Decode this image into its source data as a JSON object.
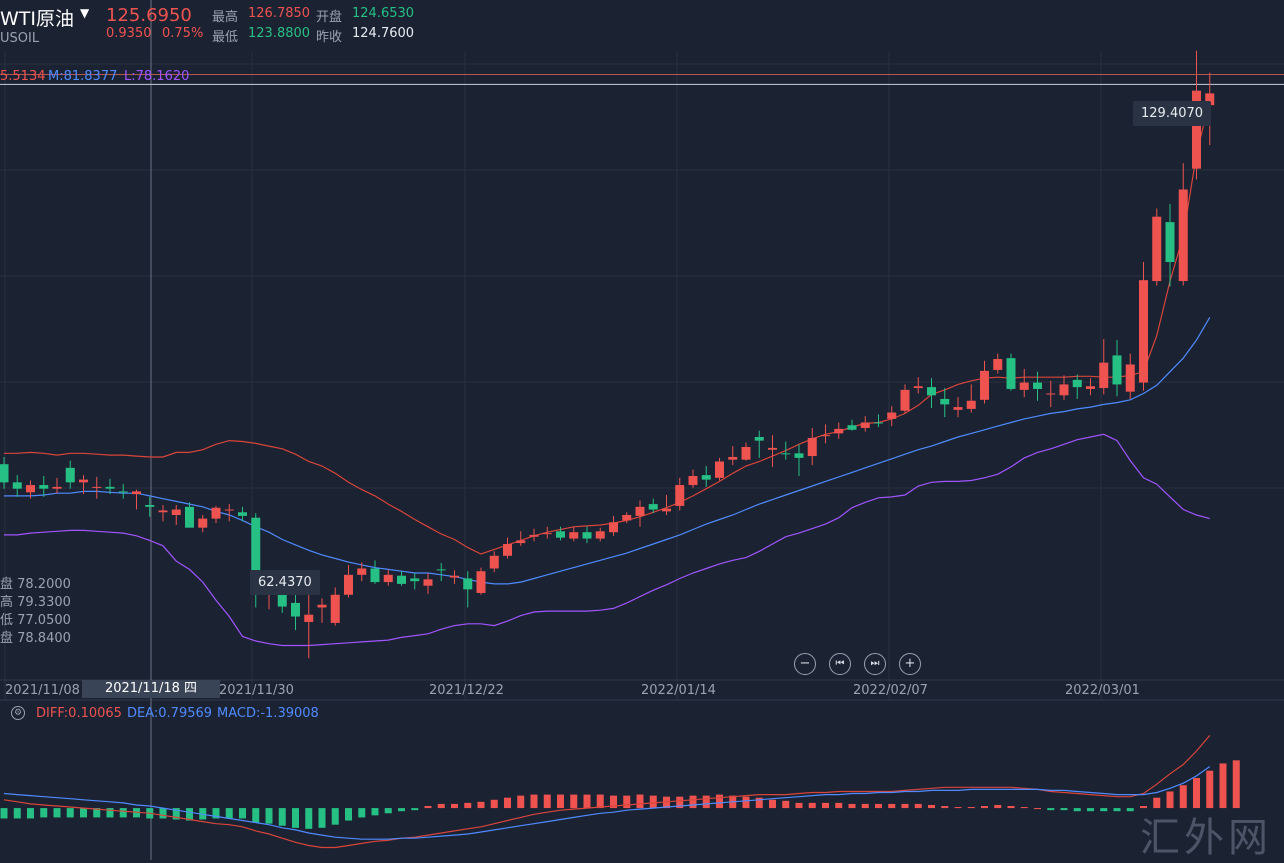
{
  "header": {
    "symbol_name": "WTI原油",
    "symbol_code": "USOIL",
    "last_price": "125.6950",
    "change": "0.9350",
    "change_pct": "0.75%",
    "stats": {
      "high_label": "最高",
      "high": "126.7850",
      "open_label": "开盘",
      "open": "124.6530",
      "low_label": "最低",
      "low": "123.8800",
      "prev_close_label": "昨收",
      "prev_close": "124.7600"
    }
  },
  "boll": {
    "upper": "5.5134",
    "mid": "M:81.8377",
    "lower": "L:78.1620"
  },
  "crosshair": {
    "date": "2021/11/18 四",
    "ohlc": [
      "盘 78.2000",
      "高 79.3300",
      "低 77.0500",
      "盘 78.8400"
    ]
  },
  "annotations": {
    "max_tag": "129.4070",
    "min_tag": "62.4370"
  },
  "macd_legend": {
    "diff": "DIFF:0.10065",
    "dea": "DEA:0.79569",
    "macd": "MACD:-1.39008"
  },
  "controls": {
    "zoom_out": "−",
    "prev": "⏮",
    "next": "⏭",
    "zoom_in": "+"
  },
  "watermark": "汇外网",
  "colors": {
    "up": "#ef5350",
    "down": "#26c085",
    "bg": "#1b2232",
    "mid_line": "#4f8bff",
    "lower_line": "#a055ff"
  },
  "chart_data": {
    "type": "candlestick",
    "price_ylim": [
      60,
      135
    ],
    "x": [
      "2021-11-01",
      "2021-11-02",
      "2021-11-03",
      "2021-11-04",
      "2021-11-05",
      "2021-11-08",
      "2021-11-09",
      "2021-11-10",
      "2021-11-11",
      "2021-11-12",
      "2021-11-15",
      "2021-11-16",
      "2021-11-17",
      "2021-11-18",
      "2021-11-19",
      "2021-11-22",
      "2021-11-23",
      "2021-11-24",
      "2021-11-25",
      "2021-11-26",
      "2021-11-29",
      "2021-11-30",
      "2021-12-01",
      "2021-12-02",
      "2021-12-03",
      "2021-12-06",
      "2021-12-07",
      "2021-12-08",
      "2021-12-09",
      "2021-12-10",
      "2021-12-13",
      "2021-12-14",
      "2021-12-15",
      "2021-12-16",
      "2021-12-17",
      "2021-12-20",
      "2021-12-21",
      "2021-12-22",
      "2021-12-23",
      "2021-12-24",
      "2021-12-27",
      "2021-12-28",
      "2021-12-29",
      "2021-12-30",
      "2021-12-31",
      "2022-01-03",
      "2022-01-04",
      "2022-01-05",
      "2022-01-06",
      "2022-01-07",
      "2022-01-10",
      "2022-01-11",
      "2022-01-12",
      "2022-01-13",
      "2022-01-14",
      "2022-01-17",
      "2022-01-18",
      "2022-01-19",
      "2022-01-20",
      "2022-01-21",
      "2022-01-24",
      "2022-01-25",
      "2022-01-26",
      "2022-01-27",
      "2022-01-28",
      "2022-01-31",
      "2022-02-01",
      "2022-02-02",
      "2022-02-03",
      "2022-02-04",
      "2022-02-07",
      "2022-02-08",
      "2022-02-09",
      "2022-02-10",
      "2022-02-11",
      "2022-02-14",
      "2022-02-15",
      "2022-02-16",
      "2022-02-17",
      "2022-02-18",
      "2022-02-21",
      "2022-02-22",
      "2022-02-23",
      "2022-02-24",
      "2022-02-25",
      "2022-02-28",
      "2022-03-01",
      "2022-03-02",
      "2022-03-03",
      "2022-03-04",
      "2022-03-07",
      "2022-03-08"
    ],
    "open": [
      83.8,
      81.8,
      80.7,
      81.5,
      81.1,
      83.4,
      81.8,
      81.3,
      81.3,
      80.8,
      80.5,
      79.3,
      78.5,
      78.2,
      79.1,
      76.8,
      77.8,
      78.8,
      78.5,
      77.9,
      69.7,
      71.0,
      68.5,
      66.4,
      68.0,
      66.3,
      69.4,
      71.6,
      72.3,
      70.8,
      71.5,
      71.2,
      70.4,
      72.2,
      71.3,
      71.2,
      69.6,
      72.3,
      73.7,
      75.1,
      75.8,
      76.2,
      76.4,
      75.6,
      76.3,
      75.6,
      76.3,
      77.6,
      78.1,
      79.4,
      78.6,
      79.2,
      81.5,
      82.6,
      82.3,
      84.3,
      84.3,
      86.8,
      85.4,
      85.0,
      85.0,
      84.7,
      86.9,
      87.2,
      88.1,
      87.8,
      88.4,
      88.8,
      89.7,
      92.2,
      92.3,
      91.0,
      89.8,
      89.9,
      90.9,
      94.2,
      95.5,
      92.0,
      92.8,
      91.5,
      91.4,
      93.1,
      92.1,
      92.2,
      95.8,
      91.8,
      92.8,
      104.0,
      110.5,
      104.0,
      116.4,
      123.4
    ],
    "high": [
      84.6,
      82.6,
      82.0,
      82.5,
      82.3,
      84.2,
      82.6,
      82.4,
      82.2,
      81.6,
      81.0,
      80.2,
      79.3,
      79.3,
      79.6,
      78.2,
      79.2,
      79.4,
      79.1,
      78.4,
      71.0,
      71.6,
      69.7,
      70.0,
      69.0,
      70.2,
      72.7,
      73.0,
      73.2,
      72.2,
      72.0,
      71.8,
      71.8,
      72.9,
      72.1,
      72.0,
      72.4,
      74.2,
      75.7,
      76.4,
      76.7,
      76.9,
      76.9,
      76.9,
      76.9,
      76.8,
      78.1,
      78.5,
      79.8,
      80.0,
      80.4,
      82.3,
      83.2,
      83.6,
      84.5,
      85.8,
      86.2,
      87.5,
      87.0,
      86.3,
      86.0,
      87.8,
      88.2,
      88.4,
      88.7,
      89.1,
      89.3,
      90.2,
      92.6,
      93.4,
      93.3,
      92.2,
      91.2,
      92.6,
      95.2,
      96.0,
      96.0,
      94.3,
      94.0,
      93.0,
      93.6,
      93.7,
      93.3,
      97.6,
      97.5,
      96.0,
      106.1,
      112.0,
      112.5,
      117.0,
      129.4,
      127.0
    ],
    "low": [
      81.1,
      80.2,
      80.0,
      80.2,
      80.6,
      81.1,
      80.5,
      80.0,
      80.5,
      80.0,
      78.8,
      78.0,
      77.5,
      77.1,
      76.9,
      76.3,
      77.3,
      77.5,
      77.5,
      68.0,
      67.8,
      67.4,
      65.5,
      62.4,
      66.3,
      66.0,
      69.1,
      70.9,
      70.6,
      70.4,
      70.4,
      70.0,
      69.5,
      70.9,
      70.6,
      68.0,
      69.4,
      71.9,
      73.4,
      74.8,
      75.3,
      75.6,
      75.4,
      75.3,
      75.1,
      75.3,
      75.9,
      77.3,
      76.9,
      78.4,
      78.2,
      78.7,
      81.2,
      81.3,
      82.0,
      83.7,
      84.2,
      84.5,
      83.5,
      84.3,
      82.5,
      83.7,
      86.1,
      86.6,
      87.5,
      87.4,
      87.9,
      88.0,
      89.4,
      91.6,
      90.0,
      89.0,
      89.0,
      89.5,
      90.5,
      93.8,
      91.9,
      91.2,
      90.8,
      90.1,
      90.9,
      91.0,
      91.4,
      91.5,
      91.3,
      91.0,
      91.9,
      103.5,
      103.4,
      103.5,
      115.2,
      119.0
    ],
    "close": [
      81.8,
      81.1,
      81.5,
      81.1,
      81.3,
      81.8,
      82.1,
      81.3,
      81.1,
      80.7,
      80.8,
      79.1,
      78.7,
      78.8,
      76.8,
      77.8,
      79.0,
      78.8,
      78.1,
      69.5,
      71.0,
      68.1,
      67.0,
      67.2,
      68.3,
      69.4,
      71.6,
      72.3,
      70.8,
      71.6,
      70.6,
      70.9,
      71.1,
      72.1,
      71.5,
      70.0,
      72.0,
      73.7,
      75.0,
      75.4,
      76.0,
      76.2,
      75.7,
      76.3,
      75.6,
      76.4,
      77.4,
      78.2,
      79.1,
      78.8,
      78.9,
      81.5,
      82.5,
      82.1,
      84.1,
      84.6,
      85.7,
      86.4,
      85.6,
      84.9,
      84.5,
      86.7,
      87.0,
      87.7,
      87.6,
      88.4,
      88.3,
      89.5,
      92.0,
      92.4,
      91.4,
      90.4,
      90.1,
      90.8,
      94.1,
      95.4,
      92.1,
      92.8,
      92.1,
      91.6,
      92.6,
      92.3,
      92.4,
      95.0,
      92.6,
      94.8,
      104.1,
      111.1,
      106.1,
      114.1,
      125.0,
      124.7
    ],
    "boll_upper": [
      85.0,
      85.0,
      85.1,
      85.0,
      84.8,
      85.0,
      85.0,
      84.9,
      84.8,
      84.8,
      84.7,
      84.6,
      84.6,
      85.1,
      85.1,
      85.4,
      86.0,
      86.4,
      86.3,
      86.1,
      85.8,
      85.5,
      84.9,
      84.1,
      83.6,
      82.8,
      81.8,
      81.0,
      80.3,
      79.4,
      78.6,
      77.7,
      76.9,
      76.1,
      75.5,
      74.6,
      73.9,
      74.4,
      74.9,
      75.4,
      75.9,
      76.3,
      76.6,
      76.9,
      77.0,
      77.1,
      77.3,
      77.6,
      78.0,
      78.5,
      79.0,
      79.6,
      80.3,
      81.1,
      81.9,
      82.8,
      83.6,
      84.1,
      84.7,
      85.3,
      86.0,
      86.6,
      87.1,
      87.4,
      87.9,
      88.3,
      88.4,
      88.8,
      89.4,
      90.3,
      91.5,
      92.0,
      92.6,
      93.0,
      93.3,
      93.4,
      93.3,
      93.4,
      93.4,
      93.4,
      93.4,
      93.5,
      93.5,
      93.4,
      93.4,
      93.6,
      94.0,
      98.0,
      104.0,
      109.0,
      118.0,
      124.0
    ],
    "boll_mid": [
      80.3,
      80.3,
      80.3,
      80.4,
      80.6,
      80.6,
      80.8,
      80.8,
      80.7,
      80.6,
      80.6,
      80.3,
      80.0,
      79.7,
      79.4,
      79.1,
      78.6,
      78.2,
      77.6,
      76.9,
      76.3,
      75.5,
      74.9,
      74.3,
      73.8,
      73.4,
      73.0,
      72.7,
      72.4,
      72.2,
      72.0,
      71.8,
      71.8,
      71.6,
      71.4,
      71.1,
      70.8,
      70.6,
      70.6,
      70.8,
      71.2,
      71.6,
      72.0,
      72.4,
      72.8,
      73.2,
      73.6,
      74.0,
      74.5,
      75.0,
      75.5,
      76.0,
      76.6,
      77.2,
      77.7,
      78.2,
      78.8,
      79.4,
      79.9,
      80.4,
      80.9,
      81.4,
      81.9,
      82.4,
      82.9,
      83.4,
      83.9,
      84.4,
      84.9,
      85.4,
      85.8,
      86.3,
      86.8,
      87.2,
      87.6,
      88.0,
      88.4,
      88.8,
      89.1,
      89.4,
      89.6,
      89.9,
      90.1,
      90.4,
      90.6,
      90.9,
      91.6,
      92.5,
      94.0,
      95.5,
      97.5,
      100.0
    ],
    "boll_lower": [
      76.0,
      76.0,
      76.2,
      76.3,
      76.4,
      76.5,
      76.5,
      76.4,
      76.3,
      76.2,
      75.9,
      75.4,
      74.8,
      73.1,
      72.2,
      70.8,
      68.8,
      67.0,
      64.8,
      64.3,
      64.0,
      63.8,
      63.8,
      63.8,
      63.9,
      64.0,
      64.1,
      64.2,
      64.3,
      64.4,
      64.7,
      64.9,
      65.1,
      65.6,
      66.0,
      66.2,
      66.2,
      66.0,
      66.5,
      67.1,
      67.5,
      67.6,
      67.6,
      67.6,
      67.6,
      67.7,
      67.9,
      68.5,
      69.2,
      69.9,
      70.5,
      71.2,
      71.8,
      72.3,
      72.8,
      73.2,
      73.5,
      74.2,
      75.0,
      75.8,
      76.2,
      76.7,
      77.2,
      77.9,
      79.0,
      79.6,
      80.1,
      80.2,
      80.4,
      81.4,
      81.8,
      81.9,
      81.9,
      82.0,
      82.3,
      82.7,
      83.5,
      84.5,
      85.1,
      85.5,
      86.0,
      86.5,
      86.8,
      87.1,
      86.4,
      84.2,
      82.3,
      81.6,
      80.2,
      78.8,
      78.2,
      77.8
    ],
    "macd_hist": [
      -1.0,
      -1.0,
      -1.0,
      -0.9,
      -0.9,
      -0.9,
      -0.9,
      -0.9,
      -0.9,
      -0.9,
      -0.9,
      -1.0,
      -1.0,
      -1.1,
      -1.2,
      -1.1,
      -1.0,
      -1.0,
      -1.0,
      -1.4,
      -1.5,
      -1.7,
      -1.9,
      -2.0,
      -1.9,
      -1.6,
      -1.2,
      -0.9,
      -0.7,
      -0.5,
      -0.3,
      -0.2,
      0.2,
      0.4,
      0.4,
      0.5,
      0.6,
      0.8,
      1.0,
      1.2,
      1.3,
      1.3,
      1.3,
      1.3,
      1.3,
      1.3,
      1.2,
      1.2,
      1.3,
      1.2,
      1.1,
      1.1,
      1.2,
      1.2,
      1.3,
      1.2,
      1.1,
      1.0,
      0.8,
      0.7,
      0.5,
      0.5,
      0.5,
      0.5,
      0.4,
      0.4,
      0.4,
      0.4,
      0.4,
      0.4,
      0.3,
      0.2,
      0.1,
      0.1,
      0.2,
      0.3,
      0.2,
      0.1,
      0.0,
      -0.2,
      -0.2,
      -0.3,
      -0.3,
      -0.3,
      -0.3,
      -0.3,
      0.2,
      1.0,
      1.6,
      2.2,
      2.9,
      3.6,
      4.3,
      4.6
    ],
    "macd_diff": [
      0.8,
      0.6,
      0.4,
      0.3,
      0.2,
      0.1,
      0.0,
      -0.1,
      -0.2,
      -0.3,
      -0.4,
      -0.5,
      -0.7,
      -0.9,
      -1.1,
      -1.3,
      -1.5,
      -1.6,
      -1.8,
      -2.2,
      -2.5,
      -2.9,
      -3.3,
      -3.6,
      -3.8,
      -3.8,
      -3.6,
      -3.4,
      -3.2,
      -3.1,
      -2.9,
      -2.8,
      -2.6,
      -2.4,
      -2.2,
      -2.0,
      -1.8,
      -1.5,
      -1.2,
      -0.9,
      -0.6,
      -0.4,
      -0.2,
      -0.1,
      0.0,
      0.1,
      0.2,
      0.3,
      0.4,
      0.5,
      0.6,
      0.7,
      0.8,
      0.9,
      1.0,
      1.1,
      1.2,
      1.3,
      1.3,
      1.3,
      1.4,
      1.5,
      1.5,
      1.6,
      1.6,
      1.6,
      1.6,
      1.6,
      1.7,
      1.8,
      1.9,
      2.0,
      2.0,
      2.0,
      2.0,
      2.0,
      2.0,
      1.9,
      1.8,
      1.6,
      1.5,
      1.4,
      1.3,
      1.2,
      1.1,
      1.1,
      1.4,
      2.3,
      3.3,
      4.2,
      5.5,
      7.0
    ],
    "macd_dea": [
      1.4,
      1.3,
      1.2,
      1.1,
      1.0,
      0.9,
      0.8,
      0.7,
      0.6,
      0.5,
      0.3,
      0.2,
      0.0,
      -0.2,
      -0.4,
      -0.6,
      -0.8,
      -1.0,
      -1.2,
      -1.4,
      -1.6,
      -1.9,
      -2.1,
      -2.4,
      -2.6,
      -2.8,
      -2.9,
      -3.0,
      -3.0,
      -3.0,
      -2.9,
      -2.9,
      -2.8,
      -2.7,
      -2.6,
      -2.5,
      -2.3,
      -2.1,
      -1.9,
      -1.7,
      -1.5,
      -1.3,
      -1.1,
      -0.9,
      -0.7,
      -0.5,
      -0.4,
      -0.2,
      -0.1,
      0.0,
      0.1,
      0.2,
      0.3,
      0.4,
      0.5,
      0.6,
      0.7,
      0.8,
      0.9,
      1.0,
      1.1,
      1.2,
      1.3,
      1.3,
      1.4,
      1.4,
      1.5,
      1.5,
      1.6,
      1.6,
      1.7,
      1.7,
      1.7,
      1.8,
      1.8,
      1.8,
      1.8,
      1.8,
      1.8,
      1.7,
      1.7,
      1.6,
      1.5,
      1.4,
      1.3,
      1.3,
      1.3,
      1.5,
      1.9,
      2.4,
      3.1,
      4.0
    ],
    "macd_ylim": [
      -5,
      8
    ],
    "x_tick_labels": [
      "2021/11/08",
      "2021/11/30",
      "2021/12/22",
      "2022/01/14",
      "2022/02/07",
      "2022/03/01"
    ],
    "grid": true
  }
}
